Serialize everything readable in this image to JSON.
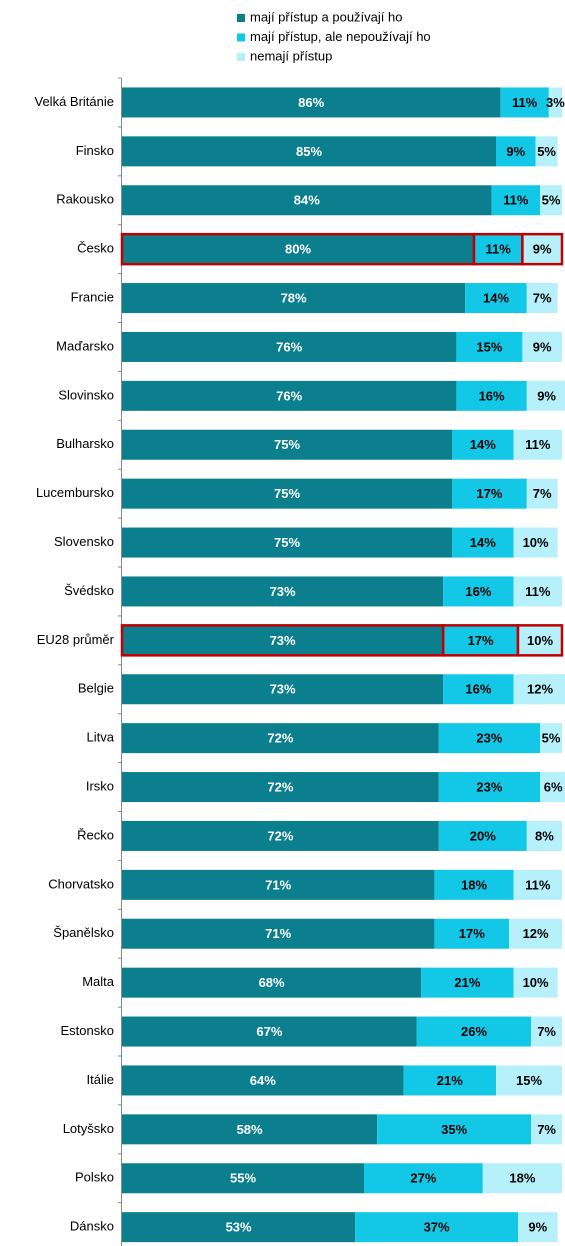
{
  "chart_data": {
    "type": "stacked-barh",
    "categories": [
      "Velká Británie",
      "Finsko",
      "Rakousko",
      "Česko",
      "Francie",
      "Maďarsko",
      "Slovinsko",
      "Bulharsko",
      "Lucembursko",
      "Slovensko",
      "Švédsko",
      "EU28 průměr",
      "Belgie",
      "Litva",
      "Irsko",
      "Řecko",
      "Chorvatsko",
      "Španělsko",
      "Malta",
      "Estonsko",
      "Itálie",
      "Lotyšsko",
      "Polsko",
      "Dánsko"
    ],
    "series": [
      {
        "name": "mají přístup a používají ho",
        "color": "#0b7f8e",
        "label_color": "#ffffff",
        "values": [
          86,
          85,
          84,
          80,
          78,
          76,
          76,
          75,
          75,
          75,
          73,
          73,
          73,
          72,
          72,
          72,
          71,
          71,
          68,
          67,
          64,
          58,
          55,
          53
        ],
        "value_labels": [
          "86%",
          "85%",
          "84%",
          "80%",
          "78%",
          "76%",
          "76%",
          "75%",
          "75%",
          "75%",
          "73%",
          "73%",
          "73%",
          "72%",
          "72%",
          "72%",
          "71%",
          "71%",
          "68%",
          "67%",
          "64%",
          "58%",
          "55%",
          "53%"
        ]
      },
      {
        "name": "mají přístup, ale nepoužívají ho",
        "color": "#12c8e6",
        "label_color": "#000000",
        "values": [
          11,
          9,
          11,
          11,
          14,
          15,
          16,
          14,
          17,
          14,
          16,
          17,
          16,
          23,
          23,
          20,
          18,
          17,
          21,
          26,
          21,
          35,
          27,
          37
        ],
        "value_labels": [
          "11%",
          "9%",
          "11%",
          "11%",
          "14%",
          "15%",
          "16%",
          "14%",
          "17%",
          "14%",
          "16%",
          "17%",
          "16%",
          "23%",
          "23%",
          "20%",
          "18%",
          "17%",
          "21%",
          "26%",
          "21%",
          "35%",
          "27%",
          "37%"
        ]
      },
      {
        "name": "nemají přístup",
        "color": "#b6f1fb",
        "label_color": "#000000",
        "values": [
          3,
          5,
          5,
          9,
          7,
          9,
          9,
          11,
          7,
          10,
          11,
          10,
          12,
          5,
          6,
          8,
          11,
          12,
          10,
          7,
          15,
          7,
          18,
          9
        ],
        "value_labels": [
          "3%",
          "5%",
          "5%",
          "9%",
          "7%",
          "9%",
          "9%",
          "11%",
          "7%",
          "10%",
          "11%",
          "10%",
          "12%",
          "5%",
          "6%",
          "8%",
          "11%",
          "12%",
          "10%",
          "7%",
          "15%",
          "7%",
          "18%",
          "9%"
        ]
      }
    ],
    "xlim": [
      0,
      100
    ],
    "highlight": {
      "categories": [
        3,
        11
      ],
      "color": "#c00000"
    },
    "legend": "top"
  }
}
